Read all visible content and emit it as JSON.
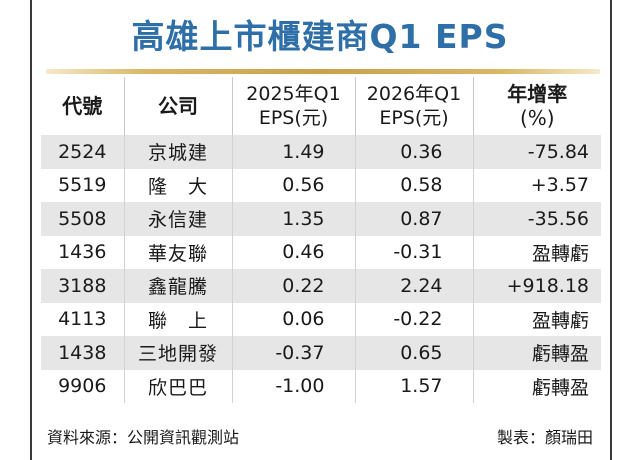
{
  "title": "高雄上市櫃建商Q1 EPS",
  "table": {
    "headers": {
      "code": "代號",
      "company": "公司",
      "eps2025_l1": "2025年Q1",
      "eps2025_l2": "EPS(元)",
      "eps2026_l1": "2026年Q1",
      "eps2026_l2": "EPS(元)",
      "growth_l1": "年增率",
      "growth_l2": "(%)"
    },
    "rows": [
      {
        "code": "2524",
        "company": "京城建",
        "eps2025": "1.49",
        "eps2026": "0.36",
        "growth": "-75.84"
      },
      {
        "code": "5519",
        "company": "隆　大",
        "eps2025": "0.56",
        "eps2026": "0.58",
        "growth": "+3.57"
      },
      {
        "code": "5508",
        "company": "永信建",
        "eps2025": "1.35",
        "eps2026": "0.87",
        "growth": "-35.56"
      },
      {
        "code": "1436",
        "company": "華友聯",
        "eps2025": "0.46",
        "eps2026": "-0.31",
        "growth": "盈轉虧"
      },
      {
        "code": "3188",
        "company": "鑫龍騰",
        "eps2025": "0.22",
        "eps2026": "2.24",
        "growth": "+918.18"
      },
      {
        "code": "4113",
        "company": "聯　上",
        "eps2025": "0.06",
        "eps2026": "-0.22",
        "growth": "盈轉虧"
      },
      {
        "code": "1438",
        "company": "三地開發",
        "eps2025": "-0.37",
        "eps2026": "0.65",
        "growth": "虧轉盈"
      },
      {
        "code": "9906",
        "company": "欣巴巴",
        "eps2025": "-1.00",
        "eps2026": "1.57",
        "growth": "虧轉盈"
      }
    ]
  },
  "footer": {
    "source": "資料來源：公開資訊觀測站",
    "credit": "製表：顏瑞田"
  },
  "colors": {
    "title": "#2f6fa8",
    "accent_bar": "#c9a24a",
    "row_shade": "#e6e6e6"
  }
}
